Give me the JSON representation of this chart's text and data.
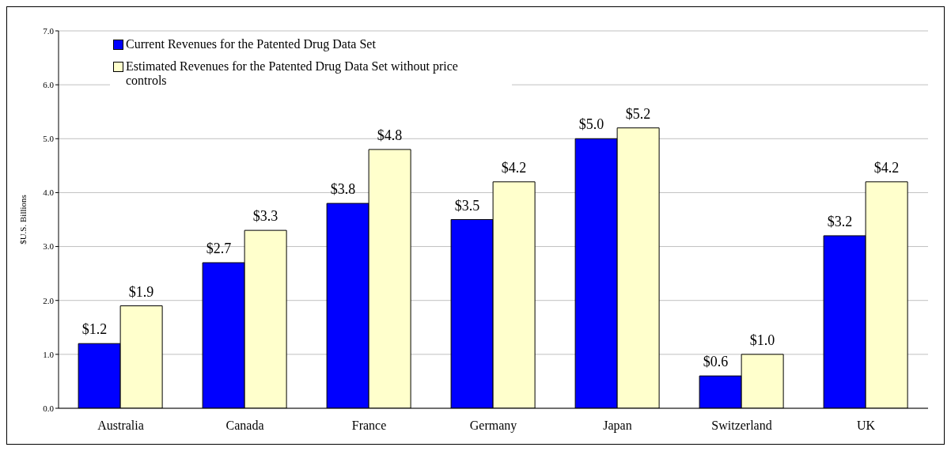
{
  "chart_data": {
    "type": "bar",
    "ylabel": "$U.S. Billions",
    "categories": [
      "Australia",
      "Canada",
      "France",
      "Germany",
      "Japan",
      "Switzerland",
      "UK"
    ],
    "series": [
      {
        "name": "Current Revenues for the Patented Drug Data Set",
        "color": "#0000ff",
        "values": [
          1.2,
          2.7,
          3.8,
          3.5,
          5.0,
          0.6,
          3.2
        ],
        "value_labels": [
          "$1.2",
          "$2.7",
          "$3.8",
          "$3.5",
          "$5.0",
          "$0.6",
          "$3.2"
        ]
      },
      {
        "name": "Estimated Revenues for the Patented Drug Data Set without price controls",
        "color": "#ffffcc",
        "values": [
          1.9,
          3.3,
          4.8,
          4.2,
          5.2,
          1.0,
          4.2
        ],
        "value_labels": [
          "$1.9",
          "$3.3",
          "$4.8",
          "$4.2",
          "$5.2",
          "$1.0",
          "$4.2"
        ]
      }
    ],
    "ylim": [
      0,
      7
    ],
    "yticks": [
      {
        "value": 0,
        "label": "0.0"
      },
      {
        "value": 1,
        "label": "1.0"
      },
      {
        "value": 2,
        "label": "2.0"
      },
      {
        "value": 3,
        "label": "3.0"
      },
      {
        "value": 4,
        "label": "4.0"
      },
      {
        "value": 5,
        "label": "5.0"
      },
      {
        "value": 6,
        "label": "6.0"
      },
      {
        "value": 7,
        "label": "7.0"
      }
    ],
    "grid": "y",
    "legend": "top left"
  }
}
